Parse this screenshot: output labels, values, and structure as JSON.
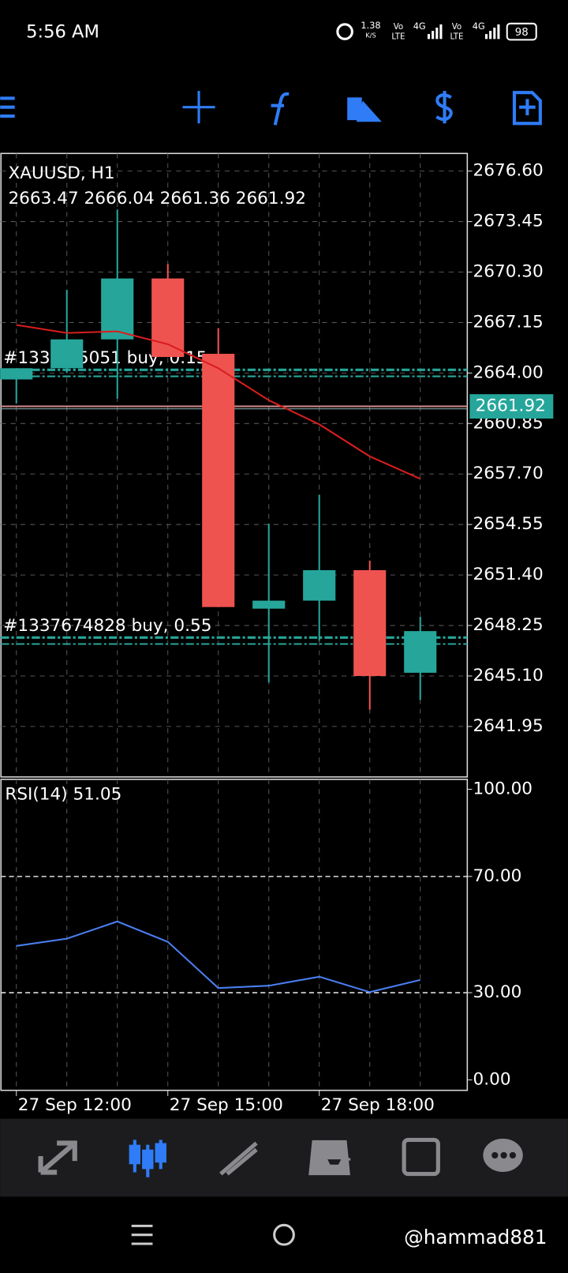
{
  "status_bar": {
    "time": "5:56 AM",
    "speed": "1.38",
    "speed_unit": "K/S",
    "network": [
      {
        "top": "Vo",
        "bottom": "LTE",
        "type": "4G"
      },
      {
        "top": "Vo",
        "bottom": "LTE",
        "type": "4G"
      }
    ],
    "battery": "98"
  },
  "chart_data": [
    {
      "type": "candlestick",
      "title": "XAUUSD, H1",
      "subtitle": "2663.47 2666.04 2661.36 2661.92",
      "categories": [
        "27 Sep 12:00",
        null,
        null,
        "27 Sep 15:00",
        null,
        null,
        "27 Sep 18:00",
        null,
        null
      ],
      "open": [
        2663.6,
        2664.3,
        2666.1,
        2669.9,
        2665.2,
        2649.3,
        2649.8,
        2651.7,
        2645.3
      ],
      "high": [
        2664.3,
        2669.2,
        2674.2,
        2670.8,
        2666.8,
        2654.6,
        2656.4,
        2652.3,
        2648.8
      ],
      "low": [
        2662.1,
        2664.0,
        2662.4,
        2665.0,
        2649.4,
        2644.7,
        2647.3,
        2643.0,
        2643.6
      ],
      "close": [
        2664.3,
        2666.1,
        2669.9,
        2665.0,
        2649.4,
        2649.8,
        2651.7,
        2645.1,
        2647.9
      ],
      "up_color": "#26a69a",
      "down_color": "#ef5350",
      "moving_average": {
        "color": "#d81e1e",
        "values": [
          2667.0,
          2666.5,
          2666.6,
          2665.8,
          2664.3,
          2662.3,
          2660.8,
          2658.8,
          2657.4
        ]
      },
      "ylim": [
        2638.8,
        2677.7
      ],
      "yticks": [
        {
          "value": 2676.6,
          "label": "2676.60"
        },
        2673.45,
        {
          "value": 2670.3,
          "label": "2670.30"
        },
        2667.15,
        {
          "value": 2664,
          "label": "2664.00"
        },
        2660.85,
        {
          "value": 2657.7,
          "label": "2657.70"
        },
        2654.55,
        {
          "value": 2651.4,
          "label": "2651.40"
        },
        2648.25,
        {
          "value": 2645.1,
          "label": "2645.10"
        },
        2641.95
      ],
      "grid": true,
      "last_price": 2661.92,
      "orders": [
        {
          "label": "#1337…5051 buy, 0.15",
          "price": 2664.2
        },
        {
          "label": "#1337674828 buy, 0.55",
          "price": 2647.5
        }
      ]
    },
    {
      "type": "line",
      "title": "RSI(14) 51.05",
      "color": "#4a7ef0",
      "values": [
        46.1,
        48.6,
        54.5,
        47.5,
        31.6,
        32.4,
        35.5,
        30.2,
        34.4
      ],
      "ylim": [
        -3.6,
        103.4
      ],
      "yticks": [
        {
          "value": 100,
          "label": "100.00"
        },
        {
          "value": 70,
          "label": "70.00"
        },
        {
          "value": 30,
          "label": "30.00"
        },
        {
          "value": 0,
          "label": "0.00"
        }
      ],
      "levels": [
        70,
        30
      ]
    }
  ],
  "watermark": "@hammad881"
}
